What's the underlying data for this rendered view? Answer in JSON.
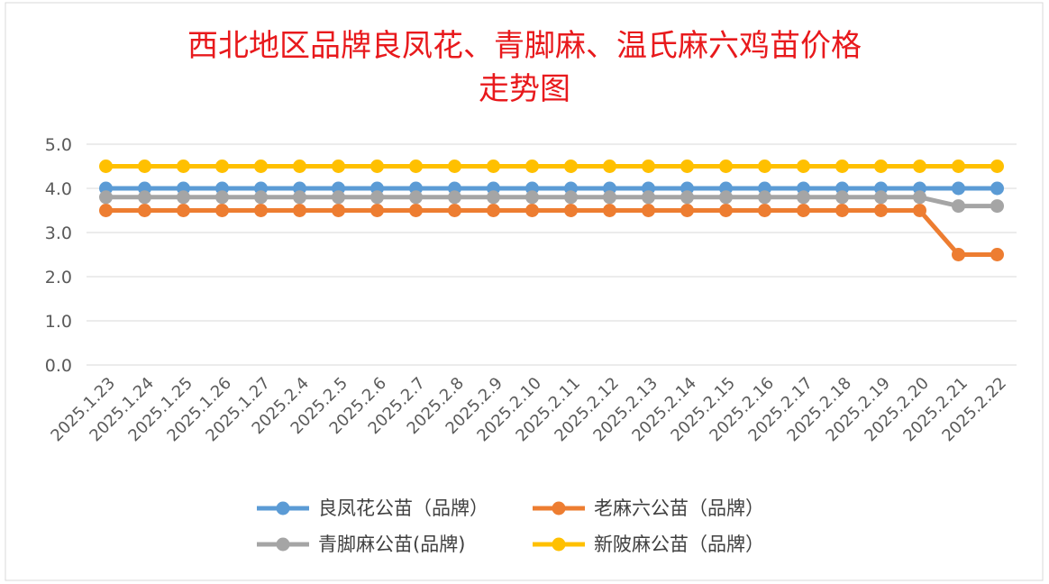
{
  "chart_data": {
    "type": "line",
    "title_lines": [
      "西北地区品牌良凤花、青脚麻、温氏麻六鸡苗价格",
      "走势图"
    ],
    "categories": [
      "2025.1.23",
      "2025.1.24",
      "2025.1.25",
      "2025.1.26",
      "2025.1.27",
      "2025.2.4",
      "2025.2.5",
      "2025.2.6",
      "2025.2.7",
      "2025.2.8",
      "2025.2.9",
      "2025.2.10",
      "2025.2.11",
      "2025.2.12",
      "2025.2.13",
      "2025.2.14",
      "2025.2.15",
      "2025.2.16",
      "2025.2.17",
      "2025.2.18",
      "2025.2.19",
      "2025.2.20",
      "2025.2.21",
      "2025.2.22"
    ],
    "y_ticks": [
      "0.0",
      "1.0",
      "2.0",
      "3.0",
      "4.0",
      "5.0"
    ],
    "ylim": [
      0,
      5
    ],
    "grid": true,
    "legend_position": "bottom",
    "series": [
      {
        "name": "良凤花公苗（品牌）",
        "color": "#5b9bd5",
        "values": [
          4.0,
          4.0,
          4.0,
          4.0,
          4.0,
          4.0,
          4.0,
          4.0,
          4.0,
          4.0,
          4.0,
          4.0,
          4.0,
          4.0,
          4.0,
          4.0,
          4.0,
          4.0,
          4.0,
          4.0,
          4.0,
          4.0,
          4.0,
          4.0
        ]
      },
      {
        "name": "老麻六公苗（品牌）",
        "color": "#ed7d31",
        "values": [
          3.5,
          3.5,
          3.5,
          3.5,
          3.5,
          3.5,
          3.5,
          3.5,
          3.5,
          3.5,
          3.5,
          3.5,
          3.5,
          3.5,
          3.5,
          3.5,
          3.5,
          3.5,
          3.5,
          3.5,
          3.5,
          3.5,
          2.5,
          2.5
        ]
      },
      {
        "name": "青脚麻公苗(品牌)",
        "color": "#a5a5a5",
        "values": [
          3.8,
          3.8,
          3.8,
          3.8,
          3.8,
          3.8,
          3.8,
          3.8,
          3.8,
          3.8,
          3.8,
          3.8,
          3.8,
          3.8,
          3.8,
          3.8,
          3.8,
          3.8,
          3.8,
          3.8,
          3.8,
          3.8,
          3.6,
          3.6
        ]
      },
      {
        "name": "新陂麻公苗（品牌）",
        "color": "#ffc000",
        "values": [
          4.5,
          4.5,
          4.5,
          4.5,
          4.5,
          4.5,
          4.5,
          4.5,
          4.5,
          4.5,
          4.5,
          4.5,
          4.5,
          4.5,
          4.5,
          4.5,
          4.5,
          4.5,
          4.5,
          4.5,
          4.5,
          4.5,
          4.5,
          4.5
        ]
      }
    ]
  }
}
